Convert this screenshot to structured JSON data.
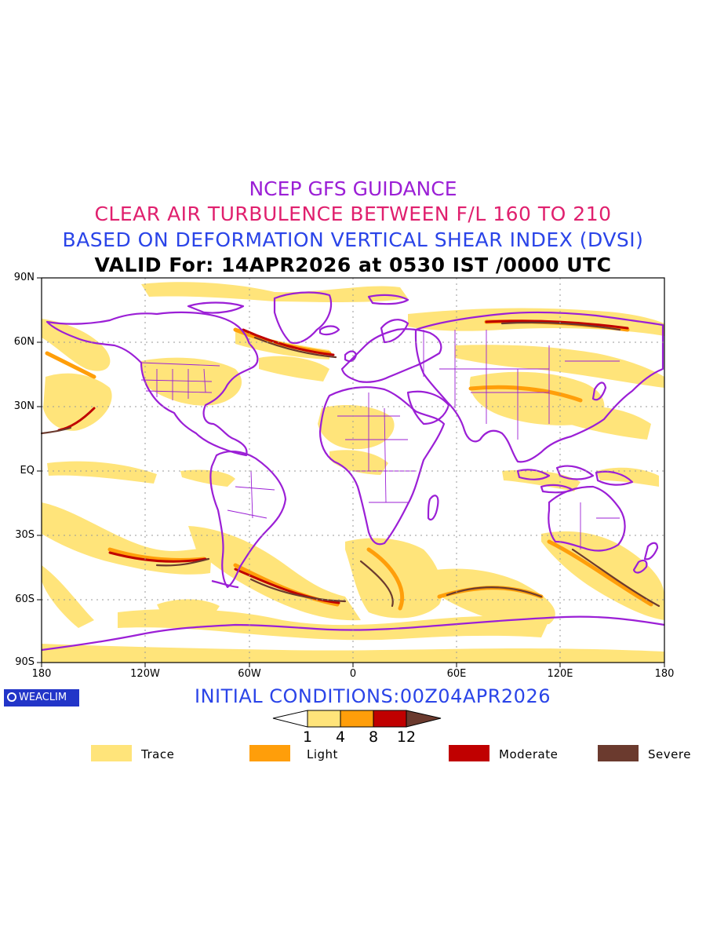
{
  "titles": {
    "line1": "NCEP GFS GUIDANCE",
    "line2": "CLEAR AIR TURBULENCE BETWEEN F/L 160 TO 210",
    "line3": "BASED ON DEFORMATION VERTICAL SHEAR INDEX (DVSI)",
    "line4": "VALID For: 14APR2026 at 0530 IST /0000 UTC"
  },
  "axes": {
    "y_labels": [
      "90N",
      "60N",
      "30N",
      "EQ",
      "30S",
      "60S",
      "90S"
    ],
    "x_labels": [
      "180",
      "120W",
      "60W",
      "0",
      "60E",
      "120E",
      "180"
    ]
  },
  "logo": {
    "text": "WEACLIM"
  },
  "initial_conditions": "INITIAL CONDITIONS:00Z04APR2026",
  "colorbar": {
    "ticks": [
      "1",
      "4",
      "8",
      "12"
    ],
    "colors": [
      "#ffffff",
      "#ffe47a",
      "#ff9e0a",
      "#c00000",
      "#6b3a2e"
    ]
  },
  "legend": [
    {
      "label": "Trace",
      "color": "#ffe47a"
    },
    {
      "label": "Light",
      "color": "#ff9e0a"
    },
    {
      "label": "Moderate",
      "color": "#c00000"
    },
    {
      "label": "Severe",
      "color": "#6b3a2e"
    }
  ],
  "map_colors": {
    "coast": "#9b1fd6",
    "trace": "#ffe47a",
    "light": "#ff9e0a",
    "moderate": "#c00000",
    "severe": "#6b3a2e",
    "grid": "#9a9a9a"
  }
}
